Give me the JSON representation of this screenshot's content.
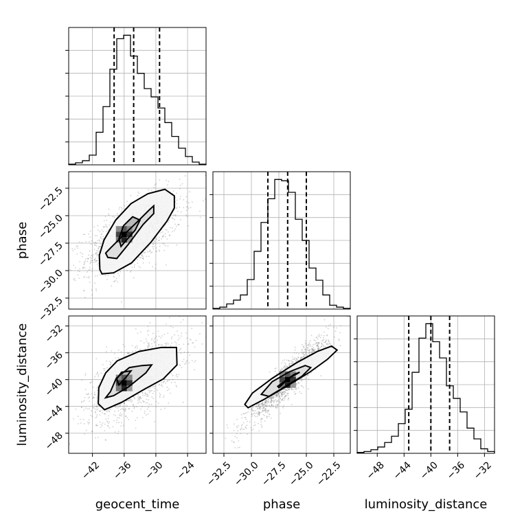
{
  "chart_data": {
    "type": "corner",
    "parameters": [
      "geocent_time",
      "phase",
      "luminosity_distance"
    ],
    "grid": true,
    "axes": {
      "geocent_time": {
        "range": [
          -46.5,
          -20.5
        ],
        "ticks": [
          -42,
          -36,
          -30,
          -24
        ],
        "tick_labels": [
          "−42",
          "−36",
          "−30",
          "−24"
        ]
      },
      "phase": {
        "range": [
          -33.5,
          -21.0
        ],
        "ticks": [
          -32.5,
          -30.0,
          -27.5,
          -25.0,
          -22.5
        ],
        "tick_labels": [
          "−32.5",
          "−30.0",
          "−27.5",
          "−25.0",
          "−22.5"
        ]
      },
      "luminosity_distance": {
        "range": [
          -51.0,
          -30.5
        ],
        "ticks": [
          -48,
          -44,
          -40,
          -36,
          -32
        ],
        "tick_labels": [
          "−48",
          "−44",
          "−40",
          "−36",
          "−32"
        ]
      }
    },
    "histograms": [
      {
        "parameter": "geocent_time",
        "bin_edges": [
          -46.5,
          -45.2,
          -43.9,
          -42.6,
          -41.3,
          -40.0,
          -38.7,
          -37.4,
          -36.1,
          -34.8,
          -33.5,
          -32.2,
          -30.9,
          -29.6,
          -28.3,
          -27.0,
          -25.7,
          -24.4,
          -23.1,
          -21.8,
          -20.5
        ],
        "counts": [
          1,
          3,
          6,
          14,
          47,
          84,
          138,
          182,
          187,
          157,
          132,
          110,
          98,
          82,
          61,
          41,
          24,
          12,
          4,
          1
        ],
        "quantiles": [
          -37.9,
          -34.2,
          -29.3
        ]
      },
      {
        "parameter": "phase",
        "bin_edges": [
          -33.5,
          -32.875,
          -32.25,
          -31.625,
          -31.0,
          -30.375,
          -29.75,
          -29.125,
          -28.5,
          -27.875,
          -27.25,
          -26.625,
          -26.0,
          -25.375,
          -24.75,
          -24.125,
          -23.5,
          -22.875,
          -22.25,
          -21.625,
          -21.0
        ],
        "counts": [
          1,
          3,
          8,
          14,
          22,
          46,
          90,
          135,
          172,
          202,
          200,
          182,
          140,
          107,
          64,
          45,
          22,
          6,
          3,
          1
        ],
        "quantiles": [
          -28.5,
          -26.7,
          -25.0
        ]
      },
      {
        "parameter": "luminosity_distance",
        "bin_edges": [
          -51.0,
          -49.975,
          -48.95,
          -47.925,
          -46.9,
          -45.875,
          -44.85,
          -43.825,
          -42.8,
          -41.775,
          -40.75,
          -39.725,
          -38.7,
          -37.675,
          -36.65,
          -35.625,
          -34.6,
          -33.575,
          -32.55,
          -31.525,
          -30.5
        ],
        "counts": [
          1,
          2,
          4,
          7,
          12,
          19,
          33,
          49,
          90,
          128,
          144,
          124,
          106,
          75,
          61,
          46,
          28,
          16,
          5,
          2
        ],
        "quantiles": [
          -43.3,
          -40.0,
          -37.2
        ]
      }
    ],
    "pairs": [
      {
        "x": "geocent_time",
        "y": "phase",
        "contour_levels": [
          [
            [
              -35.7,
              -27.3
            ],
            [
              -33.9,
              -26.3
            ],
            [
              -33.0,
              -25.4
            ],
            [
              -34.4,
              -25.1
            ],
            [
              -36.1,
              -25.9
            ],
            [
              -37.0,
              -27.1
            ],
            [
              -36.6,
              -27.8
            ]
          ],
          [
            [
              -38.5,
              -27.9
            ],
            [
              -36.2,
              -26.8
            ],
            [
              -33.6,
              -25.6
            ],
            [
              -31.3,
              -24.5
            ],
            [
              -30.4,
              -24.1
            ],
            [
              -30.4,
              -24.8
            ],
            [
              -32.4,
              -25.8
            ],
            [
              -35.2,
              -27.6
            ],
            [
              -37.4,
              -28.9
            ],
            [
              -39.1,
              -28.8
            ],
            [
              -39.5,
              -28.4
            ]
          ],
          [
            [
              -40.6,
              -29.9
            ],
            [
              -40.7,
              -28.6
            ],
            [
              -39.8,
              -27.2
            ],
            [
              -37.6,
              -25.4
            ],
            [
              -34.7,
              -23.9
            ],
            [
              -31.5,
              -23.0
            ],
            [
              -28.3,
              -22.6
            ],
            [
              -26.5,
              -23.2
            ],
            [
              -26.5,
              -24.3
            ],
            [
              -27.9,
              -25.5
            ],
            [
              -30.9,
              -27.4
            ],
            [
              -34.6,
              -29.3
            ],
            [
              -38.0,
              -30.2
            ],
            [
              -40.2,
              -30.3
            ]
          ]
        ],
        "density_peak": [
          -36.0,
          -26.7
        ]
      },
      {
        "x": "geocent_time",
        "y": "luminosity_distance",
        "contour_levels": [
          [
            [
              -37.0,
              -40.8
            ],
            [
              -35.6,
              -39.6
            ],
            [
              -34.7,
              -38.7
            ],
            [
              -36.5,
              -38.9
            ],
            [
              -37.4,
              -39.9
            ]
          ],
          [
            [
              -38.6,
              -41.8
            ],
            [
              -37.5,
              -39.8
            ],
            [
              -35.0,
              -38.2
            ],
            [
              -32.6,
              -37.9
            ],
            [
              -30.8,
              -37.8
            ],
            [
              -31.9,
              -39.0
            ],
            [
              -35.2,
              -41.1
            ],
            [
              -38.0,
              -42.4
            ],
            [
              -39.5,
              -42.7
            ]
          ],
          [
            [
              -40.9,
              -43.6
            ],
            [
              -40.8,
              -41.2
            ],
            [
              -39.5,
              -39.0
            ],
            [
              -37.3,
              -37.2
            ],
            [
              -33.2,
              -35.8
            ],
            [
              -29.0,
              -35.2
            ],
            [
              -26.1,
              -35.2
            ],
            [
              -26.0,
              -37.8
            ],
            [
              -28.6,
              -39.9
            ],
            [
              -32.1,
              -41.4
            ],
            [
              -36.5,
              -43.4
            ],
            [
              -39.7,
              -44.5
            ]
          ]
        ],
        "density_peak": [
          -36.0,
          -40.5
        ]
      },
      {
        "x": "phase",
        "y": "luminosity_distance",
        "contour_levels": [
          [
            [
              -27.6,
              -41.0
            ],
            [
              -26.1,
              -39.2
            ],
            [
              -25.6,
              -38.9
            ],
            [
              -26.6,
              -39.8
            ],
            [
              -27.5,
              -41.2
            ]
          ],
          [
            [
              -29.1,
              -42.2
            ],
            [
              -28.1,
              -40.3
            ],
            [
              -26.5,
              -38.8
            ],
            [
              -25.1,
              -37.9
            ],
            [
              -24.6,
              -38.2
            ],
            [
              -25.4,
              -39.5
            ],
            [
              -26.9,
              -41.0
            ],
            [
              -28.4,
              -42.5
            ]
          ],
          [
            [
              -30.6,
              -43.7
            ],
            [
              -29.9,
              -42.0
            ],
            [
              -28.1,
              -39.8
            ],
            [
              -25.9,
              -37.5
            ],
            [
              -24.0,
              -35.8
            ],
            [
              -22.7,
              -35.0
            ],
            [
              -22.2,
              -35.6
            ],
            [
              -23.1,
              -37.0
            ],
            [
              -24.7,
              -38.9
            ],
            [
              -27.0,
              -41.2
            ],
            [
              -28.9,
              -43.0
            ],
            [
              -30.3,
              -44.2
            ]
          ]
        ],
        "density_peak": [
          -26.7,
          -40.0
        ]
      }
    ]
  }
}
